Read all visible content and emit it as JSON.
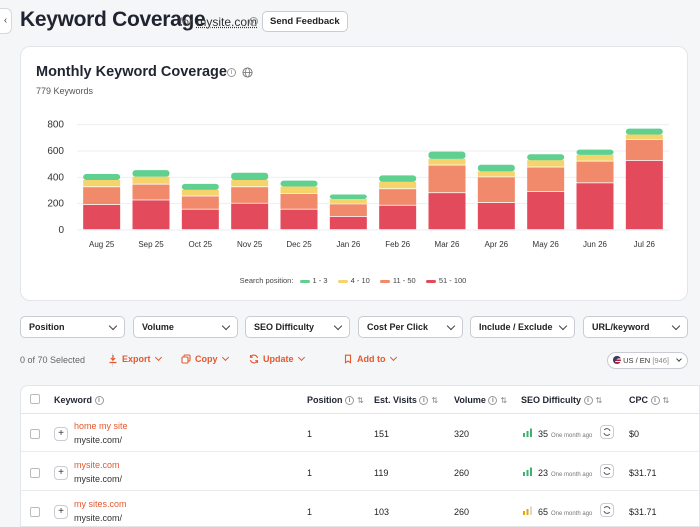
{
  "header": {
    "back_icon": "chevron-left-icon",
    "title": "Keyword Coverage",
    "for_label": "for",
    "domain": "mysite.com",
    "feedback_label": "Send Feedback"
  },
  "chart_card": {
    "title": "Monthly Keyword Coverage",
    "keyword_count": "779 Keywords",
    "legend_title": "Search position:"
  },
  "chart_data": {
    "type": "bar",
    "stacked": true,
    "categories": [
      "Aug 25",
      "Sep 25",
      "Oct 25",
      "Nov 25",
      "Dec 25",
      "Jan 26",
      "Feb 26",
      "Mar 26",
      "Apr 26",
      "May 26",
      "Jun 26",
      "Jul 26"
    ],
    "series": [
      {
        "name": "51 - 100",
        "color": "#e34b5d",
        "values": [
          190,
          225,
          155,
          200,
          155,
          100,
          185,
          280,
          205,
          290,
          355,
          525
        ]
      },
      {
        "name": "11 - 50",
        "color": "#f08a6a",
        "values": [
          135,
          120,
          100,
          125,
          120,
          95,
          125,
          210,
          195,
          185,
          165,
          160
        ]
      },
      {
        "name": "4 - 10",
        "color": "#f5d46c",
        "values": [
          55,
          60,
          50,
          55,
          55,
          40,
          55,
          50,
          45,
          55,
          50,
          40
        ]
      },
      {
        "name": "1 - 3",
        "color": "#5fd08f",
        "values": [
          45,
          50,
          45,
          55,
          45,
          35,
          50,
          55,
          50,
          45,
          40,
          45
        ]
      }
    ],
    "yticks": [
      0,
      200,
      400,
      600,
      800
    ],
    "ylim": [
      0,
      820
    ],
    "legend_placement": "bottom-center"
  },
  "filters": [
    {
      "label": "Position"
    },
    {
      "label": "Volume"
    },
    {
      "label": "SEO Difficulty"
    },
    {
      "label": "Cost Per Click"
    },
    {
      "label": "Include / Exclude"
    },
    {
      "label": "URL/keyword"
    }
  ],
  "toolbar": {
    "selected": "0 of 70 Selected",
    "export": "Export",
    "copy": "Copy",
    "update": "Update",
    "add_to": "Add to",
    "locale": "US / EN",
    "locale_count": "[946]",
    "accent": "#e4582e"
  },
  "table": {
    "columns": [
      "Keyword",
      "Position",
      "Est. Visits",
      "Volume",
      "SEO Difficulty",
      "CPC"
    ],
    "rows": [
      {
        "keyword": "home my site",
        "url": "mysite.com/",
        "position": "1",
        "visits": "151",
        "volume": "320",
        "difficulty": "35",
        "difficulty_color": "#3cb371",
        "updated": "One month ago",
        "cpc": "$0"
      },
      {
        "keyword": "mysite.com",
        "url": "mysite.com/",
        "position": "1",
        "visits": "119",
        "volume": "260",
        "difficulty": "23",
        "difficulty_color": "#3cb371",
        "updated": "One month ago",
        "cpc": "$31.71"
      },
      {
        "keyword": "my sites.com",
        "url": "mysite.com/",
        "position": "1",
        "visits": "103",
        "volume": "260",
        "difficulty": "65",
        "difficulty_color": "#e0a800",
        "updated": "One month ago",
        "cpc": "$31.71"
      }
    ]
  }
}
